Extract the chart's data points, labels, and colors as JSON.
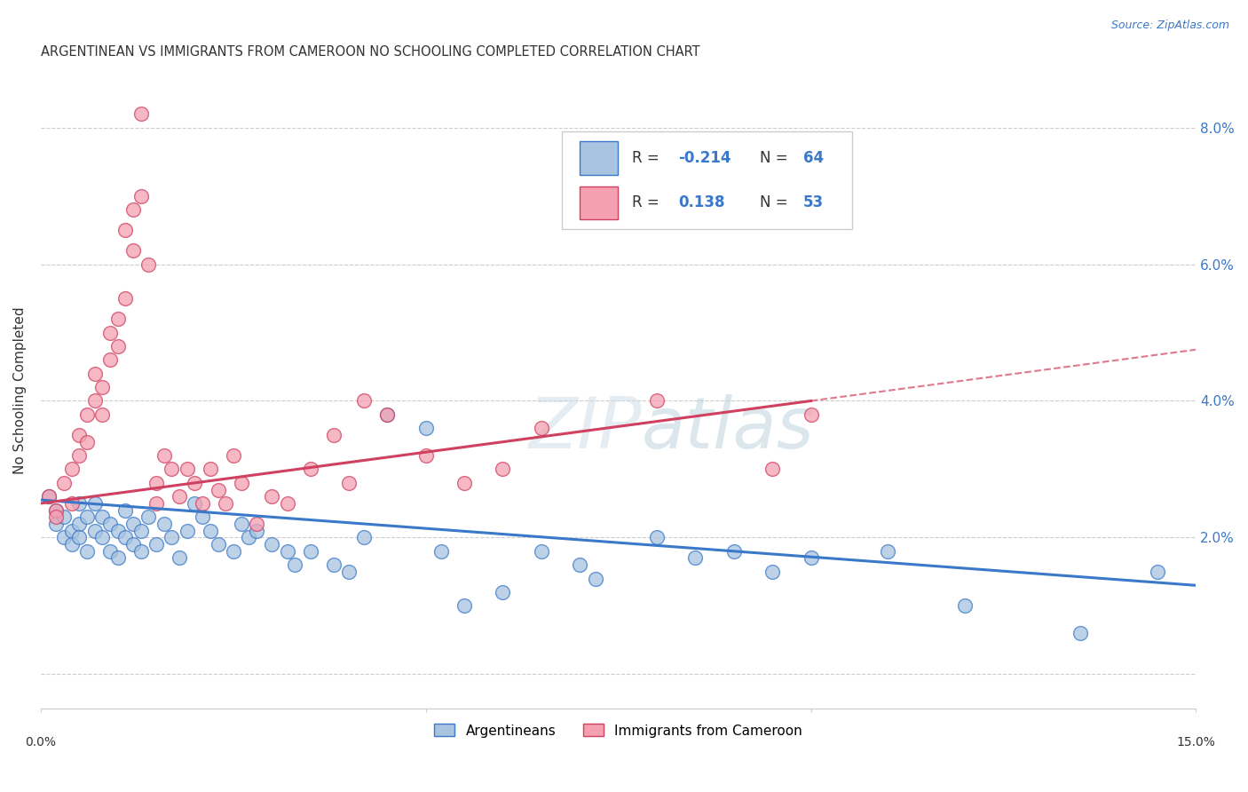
{
  "title": "ARGENTINEAN VS IMMIGRANTS FROM CAMEROON NO SCHOOLING COMPLETED CORRELATION CHART",
  "source": "Source: ZipAtlas.com",
  "ylabel": "No Schooling Completed",
  "y_ticks": [
    0.0,
    0.02,
    0.04,
    0.06,
    0.08
  ],
  "y_tick_labels": [
    "",
    "2.0%",
    "4.0%",
    "6.0%",
    "8.0%"
  ],
  "x_lim": [
    0.0,
    0.15
  ],
  "y_lim": [
    -0.005,
    0.088
  ],
  "color_blue": "#a8c4e0",
  "color_pink": "#f4a0b0",
  "line_color_blue": "#3a78c9",
  "line_color_pink": "#d04060",
  "watermark": "ZIPatlas",
  "argentineans": [
    [
      0.001,
      0.026
    ],
    [
      0.002,
      0.024
    ],
    [
      0.002,
      0.022
    ],
    [
      0.003,
      0.02
    ],
    [
      0.003,
      0.023
    ],
    [
      0.004,
      0.021
    ],
    [
      0.004,
      0.019
    ],
    [
      0.005,
      0.025
    ],
    [
      0.005,
      0.022
    ],
    [
      0.005,
      0.02
    ],
    [
      0.006,
      0.023
    ],
    [
      0.006,
      0.018
    ],
    [
      0.007,
      0.021
    ],
    [
      0.007,
      0.025
    ],
    [
      0.008,
      0.02
    ],
    [
      0.008,
      0.023
    ],
    [
      0.009,
      0.022
    ],
    [
      0.009,
      0.018
    ],
    [
      0.01,
      0.021
    ],
    [
      0.01,
      0.017
    ],
    [
      0.011,
      0.024
    ],
    [
      0.011,
      0.02
    ],
    [
      0.012,
      0.022
    ],
    [
      0.012,
      0.019
    ],
    [
      0.013,
      0.021
    ],
    [
      0.013,
      0.018
    ],
    [
      0.014,
      0.023
    ],
    [
      0.015,
      0.019
    ],
    [
      0.016,
      0.022
    ],
    [
      0.017,
      0.02
    ],
    [
      0.018,
      0.017
    ],
    [
      0.019,
      0.021
    ],
    [
      0.02,
      0.025
    ],
    [
      0.021,
      0.023
    ],
    [
      0.022,
      0.021
    ],
    [
      0.023,
      0.019
    ],
    [
      0.025,
      0.018
    ],
    [
      0.026,
      0.022
    ],
    [
      0.027,
      0.02
    ],
    [
      0.028,
      0.021
    ],
    [
      0.03,
      0.019
    ],
    [
      0.032,
      0.018
    ],
    [
      0.033,
      0.016
    ],
    [
      0.035,
      0.018
    ],
    [
      0.038,
      0.016
    ],
    [
      0.04,
      0.015
    ],
    [
      0.042,
      0.02
    ],
    [
      0.045,
      0.038
    ],
    [
      0.05,
      0.036
    ],
    [
      0.052,
      0.018
    ],
    [
      0.055,
      0.01
    ],
    [
      0.06,
      0.012
    ],
    [
      0.065,
      0.018
    ],
    [
      0.07,
      0.016
    ],
    [
      0.072,
      0.014
    ],
    [
      0.08,
      0.02
    ],
    [
      0.085,
      0.017
    ],
    [
      0.09,
      0.018
    ],
    [
      0.095,
      0.015
    ],
    [
      0.1,
      0.017
    ],
    [
      0.11,
      0.018
    ],
    [
      0.12,
      0.01
    ],
    [
      0.135,
      0.006
    ],
    [
      0.145,
      0.015
    ]
  ],
  "cameroon": [
    [
      0.001,
      0.026
    ],
    [
      0.002,
      0.024
    ],
    [
      0.002,
      0.023
    ],
    [
      0.003,
      0.028
    ],
    [
      0.004,
      0.03
    ],
    [
      0.004,
      0.025
    ],
    [
      0.005,
      0.032
    ],
    [
      0.005,
      0.035
    ],
    [
      0.006,
      0.038
    ],
    [
      0.006,
      0.034
    ],
    [
      0.007,
      0.04
    ],
    [
      0.007,
      0.044
    ],
    [
      0.008,
      0.038
    ],
    [
      0.008,
      0.042
    ],
    [
      0.009,
      0.05
    ],
    [
      0.009,
      0.046
    ],
    [
      0.01,
      0.048
    ],
    [
      0.01,
      0.052
    ],
    [
      0.011,
      0.055
    ],
    [
      0.011,
      0.065
    ],
    [
      0.012,
      0.068
    ],
    [
      0.012,
      0.062
    ],
    [
      0.013,
      0.082
    ],
    [
      0.013,
      0.07
    ],
    [
      0.014,
      0.06
    ],
    [
      0.015,
      0.028
    ],
    [
      0.015,
      0.025
    ],
    [
      0.016,
      0.032
    ],
    [
      0.017,
      0.03
    ],
    [
      0.018,
      0.026
    ],
    [
      0.019,
      0.03
    ],
    [
      0.02,
      0.028
    ],
    [
      0.021,
      0.025
    ],
    [
      0.022,
      0.03
    ],
    [
      0.023,
      0.027
    ],
    [
      0.024,
      0.025
    ],
    [
      0.025,
      0.032
    ],
    [
      0.026,
      0.028
    ],
    [
      0.028,
      0.022
    ],
    [
      0.03,
      0.026
    ],
    [
      0.032,
      0.025
    ],
    [
      0.035,
      0.03
    ],
    [
      0.038,
      0.035
    ],
    [
      0.04,
      0.028
    ],
    [
      0.042,
      0.04
    ],
    [
      0.045,
      0.038
    ],
    [
      0.05,
      0.032
    ],
    [
      0.055,
      0.028
    ],
    [
      0.06,
      0.03
    ],
    [
      0.065,
      0.036
    ],
    [
      0.08,
      0.04
    ],
    [
      0.095,
      0.03
    ],
    [
      0.1,
      0.038
    ]
  ]
}
